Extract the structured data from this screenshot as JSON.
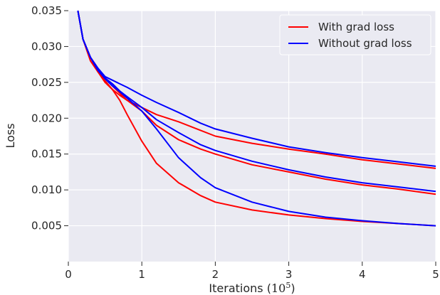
{
  "chart_data": {
    "type": "line",
    "xlabel": "Iterations (",
    "xlabel_base": "10",
    "xlabel_exp": "5",
    "xlabel_close": ")",
    "ylabel": "Loss",
    "xlim": [
      0,
      5
    ],
    "ylim": [
      0,
      0.035
    ],
    "xticks": [
      0,
      1,
      2,
      3,
      4,
      5
    ],
    "xtick_labels": [
      "0",
      "1",
      "2",
      "3",
      "4",
      "5"
    ],
    "yticks": [
      0.005,
      0.01,
      0.015,
      0.02,
      0.025,
      0.03,
      0.035
    ],
    "ytick_labels": [
      "0.005",
      "0.010",
      "0.015",
      "0.020",
      "0.025",
      "0.030",
      "0.035"
    ],
    "grid": true,
    "background": "#EAEAF2",
    "legend": {
      "position": "top-right",
      "entries": [
        {
          "label": "With grad loss",
          "color": "#FF0000"
        },
        {
          "label": "Without grad loss",
          "color": "#0000FF"
        }
      ]
    },
    "series": [
      {
        "group": "With grad loss",
        "color": "#FF0000",
        "x": [
          0.13,
          0.2,
          0.3,
          0.4,
          0.5,
          0.6,
          0.7,
          0.8,
          1.0,
          1.2,
          1.5,
          1.8,
          2.0,
          2.5,
          3.0,
          3.5,
          4.0,
          4.5,
          5.0
        ],
        "y": [
          0.035,
          0.031,
          0.0285,
          0.027,
          0.0255,
          0.0245,
          0.0235,
          0.0225,
          0.0215,
          0.0205,
          0.0195,
          0.0183,
          0.0175,
          0.0165,
          0.0157,
          0.015,
          0.0142,
          0.0136,
          0.013
        ]
      },
      {
        "group": "With grad loss",
        "color": "#FF0000",
        "x": [
          0.13,
          0.2,
          0.3,
          0.4,
          0.5,
          0.6,
          0.7,
          0.8,
          1.0,
          1.2,
          1.5,
          1.8,
          2.0,
          2.5,
          3.0,
          3.5,
          4.0,
          4.5,
          5.0
        ],
        "y": [
          0.035,
          0.031,
          0.028,
          0.0265,
          0.025,
          0.024,
          0.0232,
          0.0225,
          0.021,
          0.019,
          0.017,
          0.0157,
          0.015,
          0.0135,
          0.0125,
          0.0115,
          0.0107,
          0.0101,
          0.0094
        ]
      },
      {
        "group": "With grad loss",
        "color": "#FF0000",
        "x": [
          0.13,
          0.2,
          0.3,
          0.4,
          0.5,
          0.6,
          0.7,
          0.8,
          1.0,
          1.2,
          1.5,
          1.8,
          2.0,
          2.5,
          3.0,
          3.5,
          4.0,
          4.5,
          5.0
        ],
        "y": [
          0.035,
          0.031,
          0.0285,
          0.0265,
          0.0252,
          0.024,
          0.0225,
          0.0205,
          0.0168,
          0.0137,
          0.011,
          0.0092,
          0.0083,
          0.0072,
          0.0065,
          0.006,
          0.0056,
          0.0053,
          0.005
        ]
      },
      {
        "group": "Without grad loss",
        "color": "#0000FF",
        "x": [
          0.13,
          0.2,
          0.3,
          0.4,
          0.5,
          0.6,
          0.7,
          0.8,
          1.0,
          1.2,
          1.5,
          1.8,
          2.0,
          2.5,
          3.0,
          3.5,
          4.0,
          4.5,
          5.0
        ],
        "y": [
          0.035,
          0.031,
          0.0285,
          0.027,
          0.0258,
          0.0253,
          0.0248,
          0.0243,
          0.0232,
          0.0222,
          0.0208,
          0.0193,
          0.0185,
          0.0172,
          0.016,
          0.0152,
          0.0145,
          0.0139,
          0.0133
        ]
      },
      {
        "group": "Without grad loss",
        "color": "#0000FF",
        "x": [
          0.13,
          0.2,
          0.3,
          0.4,
          0.5,
          0.6,
          0.7,
          0.8,
          1.0,
          1.2,
          1.5,
          1.8,
          2.0,
          2.5,
          3.0,
          3.5,
          4.0,
          4.5,
          5.0
        ],
        "y": [
          0.035,
          0.031,
          0.0285,
          0.0268,
          0.0256,
          0.0248,
          0.0238,
          0.023,
          0.0215,
          0.0198,
          0.018,
          0.0163,
          0.0155,
          0.014,
          0.0128,
          0.0118,
          0.011,
          0.0104,
          0.0098
        ]
      },
      {
        "group": "Without grad loss",
        "color": "#0000FF",
        "x": [
          0.13,
          0.2,
          0.3,
          0.4,
          0.5,
          0.6,
          0.7,
          0.8,
          1.0,
          1.2,
          1.5,
          1.8,
          2.0,
          2.5,
          3.0,
          3.5,
          4.0,
          4.5,
          5.0
        ],
        "y": [
          0.035,
          0.031,
          0.0285,
          0.0267,
          0.0255,
          0.0245,
          0.0237,
          0.0228,
          0.021,
          0.0185,
          0.0145,
          0.0117,
          0.0103,
          0.0083,
          0.007,
          0.0062,
          0.0057,
          0.0053,
          0.005
        ]
      }
    ]
  }
}
